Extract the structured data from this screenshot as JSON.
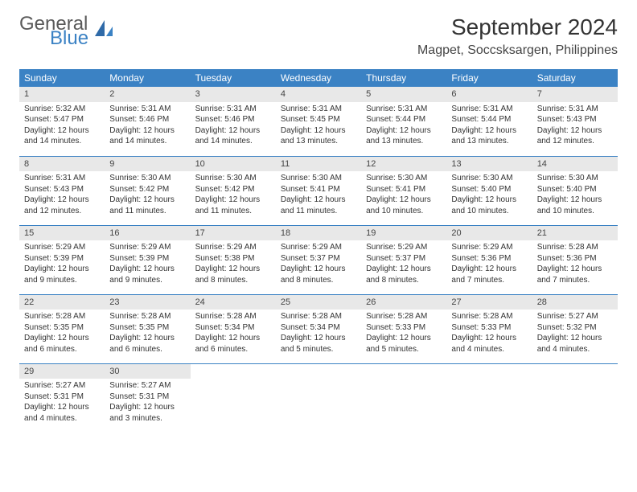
{
  "brand": {
    "word1": "General",
    "word2": "Blue"
  },
  "title": "September 2024",
  "location": "Magpet, Soccsksargen, Philippines",
  "colors": {
    "header_bg": "#3b82c4",
    "header_text": "#ffffff",
    "daynum_bg": "#e8e8e8",
    "row_border": "#3b82c4",
    "body_text": "#333333",
    "brand_gray": "#5a5a5a",
    "brand_blue": "#3b82c4"
  },
  "weekdays": [
    "Sunday",
    "Monday",
    "Tuesday",
    "Wednesday",
    "Thursday",
    "Friday",
    "Saturday"
  ],
  "days": [
    {
      "n": 1,
      "sunrise": "5:32 AM",
      "sunset": "5:47 PM",
      "daylight": "12 hours and 14 minutes."
    },
    {
      "n": 2,
      "sunrise": "5:31 AM",
      "sunset": "5:46 PM",
      "daylight": "12 hours and 14 minutes."
    },
    {
      "n": 3,
      "sunrise": "5:31 AM",
      "sunset": "5:46 PM",
      "daylight": "12 hours and 14 minutes."
    },
    {
      "n": 4,
      "sunrise": "5:31 AM",
      "sunset": "5:45 PM",
      "daylight": "12 hours and 13 minutes."
    },
    {
      "n": 5,
      "sunrise": "5:31 AM",
      "sunset": "5:44 PM",
      "daylight": "12 hours and 13 minutes."
    },
    {
      "n": 6,
      "sunrise": "5:31 AM",
      "sunset": "5:44 PM",
      "daylight": "12 hours and 13 minutes."
    },
    {
      "n": 7,
      "sunrise": "5:31 AM",
      "sunset": "5:43 PM",
      "daylight": "12 hours and 12 minutes."
    },
    {
      "n": 8,
      "sunrise": "5:31 AM",
      "sunset": "5:43 PM",
      "daylight": "12 hours and 12 minutes."
    },
    {
      "n": 9,
      "sunrise": "5:30 AM",
      "sunset": "5:42 PM",
      "daylight": "12 hours and 11 minutes."
    },
    {
      "n": 10,
      "sunrise": "5:30 AM",
      "sunset": "5:42 PM",
      "daylight": "12 hours and 11 minutes."
    },
    {
      "n": 11,
      "sunrise": "5:30 AM",
      "sunset": "5:41 PM",
      "daylight": "12 hours and 11 minutes."
    },
    {
      "n": 12,
      "sunrise": "5:30 AM",
      "sunset": "5:41 PM",
      "daylight": "12 hours and 10 minutes."
    },
    {
      "n": 13,
      "sunrise": "5:30 AM",
      "sunset": "5:40 PM",
      "daylight": "12 hours and 10 minutes."
    },
    {
      "n": 14,
      "sunrise": "5:30 AM",
      "sunset": "5:40 PM",
      "daylight": "12 hours and 10 minutes."
    },
    {
      "n": 15,
      "sunrise": "5:29 AM",
      "sunset": "5:39 PM",
      "daylight": "12 hours and 9 minutes."
    },
    {
      "n": 16,
      "sunrise": "5:29 AM",
      "sunset": "5:39 PM",
      "daylight": "12 hours and 9 minutes."
    },
    {
      "n": 17,
      "sunrise": "5:29 AM",
      "sunset": "5:38 PM",
      "daylight": "12 hours and 8 minutes."
    },
    {
      "n": 18,
      "sunrise": "5:29 AM",
      "sunset": "5:37 PM",
      "daylight": "12 hours and 8 minutes."
    },
    {
      "n": 19,
      "sunrise": "5:29 AM",
      "sunset": "5:37 PM",
      "daylight": "12 hours and 8 minutes."
    },
    {
      "n": 20,
      "sunrise": "5:29 AM",
      "sunset": "5:36 PM",
      "daylight": "12 hours and 7 minutes."
    },
    {
      "n": 21,
      "sunrise": "5:28 AM",
      "sunset": "5:36 PM",
      "daylight": "12 hours and 7 minutes."
    },
    {
      "n": 22,
      "sunrise": "5:28 AM",
      "sunset": "5:35 PM",
      "daylight": "12 hours and 6 minutes."
    },
    {
      "n": 23,
      "sunrise": "5:28 AM",
      "sunset": "5:35 PM",
      "daylight": "12 hours and 6 minutes."
    },
    {
      "n": 24,
      "sunrise": "5:28 AM",
      "sunset": "5:34 PM",
      "daylight": "12 hours and 6 minutes."
    },
    {
      "n": 25,
      "sunrise": "5:28 AM",
      "sunset": "5:34 PM",
      "daylight": "12 hours and 5 minutes."
    },
    {
      "n": 26,
      "sunrise": "5:28 AM",
      "sunset": "5:33 PM",
      "daylight": "12 hours and 5 minutes."
    },
    {
      "n": 27,
      "sunrise": "5:28 AM",
      "sunset": "5:33 PM",
      "daylight": "12 hours and 4 minutes."
    },
    {
      "n": 28,
      "sunrise": "5:27 AM",
      "sunset": "5:32 PM",
      "daylight": "12 hours and 4 minutes."
    },
    {
      "n": 29,
      "sunrise": "5:27 AM",
      "sunset": "5:31 PM",
      "daylight": "12 hours and 4 minutes."
    },
    {
      "n": 30,
      "sunrise": "5:27 AM",
      "sunset": "5:31 PM",
      "daylight": "12 hours and 3 minutes."
    }
  ],
  "labels": {
    "sunrise": "Sunrise:",
    "sunset": "Sunset:",
    "daylight": "Daylight:"
  },
  "start_weekday": 0,
  "rows": 5,
  "cols": 7
}
